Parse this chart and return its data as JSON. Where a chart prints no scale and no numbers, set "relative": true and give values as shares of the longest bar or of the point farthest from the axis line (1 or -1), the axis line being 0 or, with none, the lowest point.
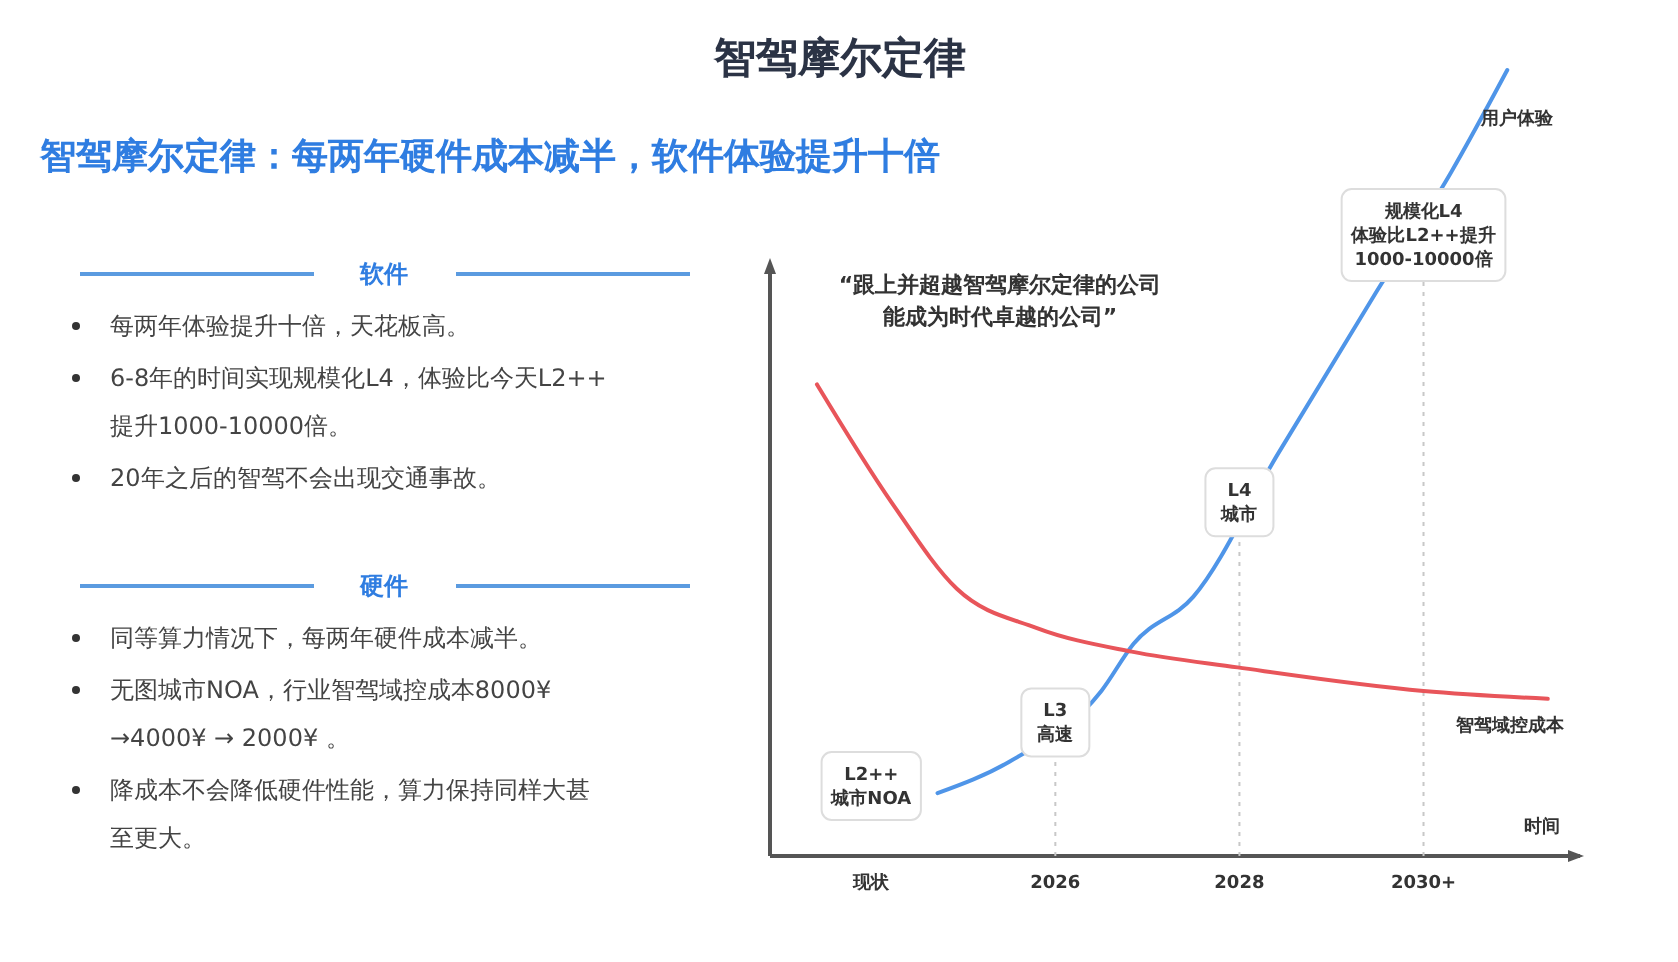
{
  "chart_data": {
    "type": "line",
    "title": "智驾摩尔定律",
    "subtitle": "智驾摩尔定律：每两年硬件成本减半，软件体验提升十倍",
    "xlabel": "时间",
    "relative": true,
    "legend": false,
    "grid": false,
    "xlim": [
      2022.9,
      2031.7
    ],
    "xticks": [
      {
        "value": 2024,
        "label": "现状"
      },
      2026,
      2028,
      {
        "value": 2030,
        "label": "2030+"
      }
    ],
    "series": [
      {
        "name": "用户体验",
        "color": "#4f95e8",
        "x": [
          2024.72,
          2025.5,
          2026.5,
          2026.85,
          2027.5,
          2028.41,
          2029.5,
          2030.3,
          2030.91
        ],
        "values": [
          0.08,
          0.12,
          0.21,
          0.27,
          0.33,
          0.51,
          0.72,
          0.87,
          1
        ]
      },
      {
        "name": "智驾域控成本",
        "color": "#e8555a",
        "x": [
          2023.41,
          2024.22,
          2024.93,
          2025.8,
          2026.83,
          2027.98,
          2030,
          2031.35
        ],
        "values": [
          0.6,
          0.45,
          0.34,
          0.29,
          0.26,
          0.24,
          0.21,
          0.2
        ]
      }
    ],
    "ref_lines": [
      {
        "axis": "x",
        "value": 2026,
        "line_style": "dotted",
        "color": "#c8c8c8"
      },
      {
        "axis": "x",
        "value": 2028,
        "line_style": "dotted",
        "color": "#c8c8c8"
      },
      {
        "axis": "x",
        "value": 2030,
        "line_style": "dotted",
        "color": "#c8c8c8"
      }
    ],
    "annotations": [
      "“跟上并超越智驾摩尔定律的公司能成为时代卓越的公司”",
      "软件",
      "每两年体验提升十倍，天花板高。",
      "6-8年的时间实现规模化L4，体验比今天L2++提升1000-10000倍。",
      "20年之后的智驾不会出现交通事故。",
      "硬件",
      "同等算力情况下，每两年硬件成本减半。",
      "无图城市NOA，行业智驾域控成本8000¥ →4000¥ → 2000¥ 。",
      "降成本不会降低硬件性能，算力保持同样大甚至更大。",
      "L2++\n城市NOA",
      {
        "text": "L3\n高速",
        "x": 2026,
        "y": 0.17
      },
      {
        "text": "L4\n城市",
        "x": 2028,
        "y": 0.45
      },
      {
        "text": "规模化L4\n体验比L2++提升\n1000-10000倍",
        "x": 2030,
        "y": 0.79
      }
    ]
  }
}
